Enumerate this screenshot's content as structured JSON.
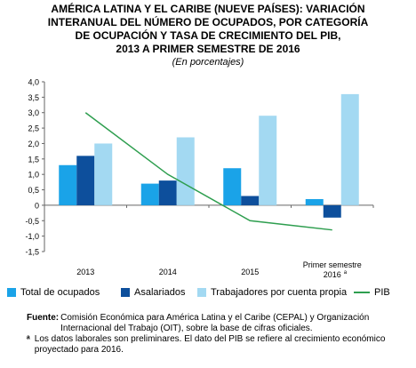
{
  "title_lines": [
    "AMÉRICA LATINA Y EL CARIBE (NUEVE PAÍSES): VARIACIÓN",
    "INTERANUAL DEL NÚMERO DE OCUPADOS, POR CATEGORÍA",
    "DE OCUPACIÓN Y TASA DE CRECIMIENTO DEL PIB,",
    "2013 A PRIMER SEMESTRE DE 2016"
  ],
  "subtitle": "(En porcentajes)",
  "chart_data": {
    "type": "bar",
    "categories": [
      "2013",
      "2014",
      "2015",
      "Primer semestre 2016"
    ],
    "category_footnote": "a",
    "series": [
      {
        "name": "Total de ocupados",
        "type": "bar",
        "color": "#1aa3e8",
        "values": [
          1.3,
          0.7,
          1.2,
          0.2
        ]
      },
      {
        "name": "Asalariados",
        "type": "bar",
        "color": "#0d4f9c",
        "values": [
          1.6,
          0.8,
          0.3,
          -0.4
        ]
      },
      {
        "name": "Trabajadores por cuenta propia",
        "type": "bar",
        "color": "#a3d9f2",
        "values": [
          2.0,
          2.2,
          2.9,
          3.6
        ]
      },
      {
        "name": "PIB",
        "type": "line",
        "color": "#2e9e4f",
        "values": [
          3.0,
          1.0,
          -0.5,
          -0.8
        ]
      }
    ],
    "ylim": [
      -1.5,
      4.0
    ],
    "yticks": [
      "4,0",
      "3,5",
      "3,0",
      "2,5",
      "2,0",
      "1,5",
      "1,0",
      "0,5",
      "0",
      "-0,5",
      "-1,0",
      "-1,5"
    ],
    "ytick_values": [
      4.0,
      3.5,
      3.0,
      2.5,
      2.0,
      1.5,
      1.0,
      0.5,
      0,
      -0.5,
      -1.0,
      -1.5
    ],
    "grid": false,
    "legend_position": "bottom"
  },
  "notes": {
    "source_label": "Fuente:",
    "source_text": "Comisión Económica para América Latina y el Caribe (CEPAL) y Organización Internacional del Trabajo (OIT), sobre la base de cifras oficiales.",
    "footnote_label": "ᵃ",
    "footnote_text": "Los datos laborales son preliminares. El dato del PIB se refiere al crecimiento económico proyectado para 2016."
  }
}
